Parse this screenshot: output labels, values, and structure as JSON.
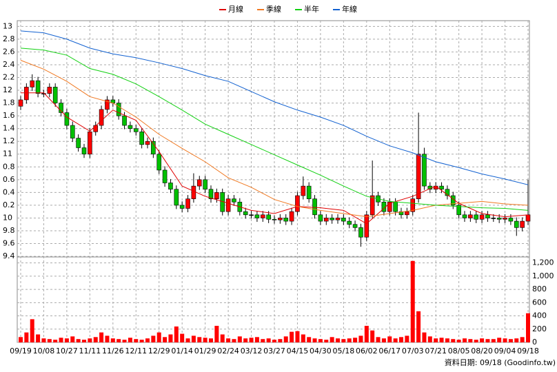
{
  "footer": "資料日期: 09/18 (Goodinfo.tw)",
  "chart_data": [
    {
      "type": "candlestick",
      "up_color": "#ff0000",
      "down_color": "#00c000",
      "wick_color": "#000000",
      "grid": true,
      "ylim": [
        9.39,
        13.09
      ],
      "yticks": [
        {
          "value": 13,
          "label": "13"
        },
        {
          "value": 12.8,
          "label": "2.8"
        },
        {
          "value": 12.6,
          "label": "2.6"
        },
        {
          "value": 12.4,
          "label": "2.4"
        },
        {
          "value": 12.2,
          "label": "2.2"
        },
        {
          "value": 12,
          "label": "12"
        },
        {
          "value": 11.8,
          "label": "1.8"
        },
        {
          "value": 11.6,
          "label": "1.6"
        },
        {
          "value": 11.4,
          "label": "1.4"
        },
        {
          "value": 11.2,
          "label": "1.2"
        },
        {
          "value": 11,
          "label": "11"
        },
        {
          "value": 10.8,
          "label": "0.8"
        },
        {
          "value": 10.6,
          "label": "0.6"
        },
        {
          "value": 10.4,
          "label": "0.4"
        },
        {
          "value": 10.2,
          "label": "0.2"
        },
        10,
        9.8,
        9.6,
        9.4
      ],
      "categories": [
        "09/19",
        null,
        null,
        null,
        "10/08",
        null,
        null,
        null,
        "10/27",
        null,
        null,
        null,
        "11/11",
        null,
        null,
        null,
        "11/26",
        null,
        null,
        null,
        "12/11",
        null,
        null,
        null,
        "12/29",
        null,
        null,
        null,
        "01/14",
        null,
        null,
        null,
        "01/29",
        null,
        null,
        null,
        "02/24",
        null,
        null,
        null,
        "03/12",
        null,
        null,
        null,
        "03/27",
        null,
        null,
        null,
        "04/15",
        null,
        null,
        null,
        "04/30",
        null,
        null,
        null,
        "05/18",
        null,
        null,
        null,
        "06/02",
        null,
        null,
        null,
        "06/17",
        null,
        null,
        null,
        "07/03",
        null,
        null,
        null,
        "07/21",
        null,
        null,
        null,
        "08/05",
        null,
        null,
        null,
        "08/20",
        null,
        null,
        null,
        "09/04",
        null,
        null,
        null,
        "09/18"
      ],
      "open": [
        11.75,
        11.85,
        12.05,
        12.15,
        11.95,
        11.95,
        12.05,
        11.8,
        11.65,
        11.45,
        11.25,
        11.1,
        11.0,
        11.35,
        11.45,
        11.7,
        11.85,
        11.8,
        11.6,
        11.45,
        11.4,
        11.35,
        11.15,
        11.2,
        11.0,
        10.75,
        10.55,
        10.45,
        10.2,
        10.15,
        10.3,
        10.5,
        10.6,
        10.45,
        10.3,
        10.4,
        10.1,
        10.3,
        10.25,
        10.1,
        10.05,
        10.05,
        10.0,
        10.05,
        9.98,
        9.97,
        10.0,
        9.95,
        10.1,
        10.35,
        10.5,
        10.3,
        10.05,
        9.95,
        10.0,
        9.97,
        10.0,
        9.95,
        9.9,
        9.85,
        9.7,
        10.05,
        10.35,
        10.25,
        10.1,
        10.25,
        10.1,
        10.05,
        10.1,
        10.3,
        11.0,
        10.5,
        10.45,
        10.5,
        10.45,
        10.35,
        10.2,
        10.05,
        10.0,
        10.05,
        9.98,
        10.05,
        10.0,
        10.0,
        9.98,
        10.0,
        9.95,
        9.85,
        9.95
      ],
      "high": [
        11.91,
        12.11,
        12.25,
        12.21,
        12.01,
        12.11,
        12.11,
        11.86,
        11.71,
        11.51,
        11.31,
        11.16,
        11.41,
        11.51,
        11.76,
        11.91,
        11.91,
        11.86,
        11.66,
        11.51,
        11.46,
        11.41,
        11.26,
        11.26,
        11.06,
        10.81,
        10.61,
        10.51,
        10.26,
        10.36,
        10.7,
        10.66,
        10.66,
        10.51,
        10.46,
        10.46,
        10.36,
        10.36,
        10.31,
        10.16,
        10.11,
        10.11,
        10.11,
        10.11,
        10.04,
        10.06,
        10.06,
        10.16,
        10.41,
        10.65,
        10.56,
        10.36,
        10.11,
        10.06,
        10.06,
        10.06,
        10.06,
        10.01,
        9.96,
        9.91,
        10.11,
        10.9,
        10.41,
        10.31,
        10.31,
        10.31,
        10.16,
        10.16,
        10.36,
        11.65,
        11.1,
        10.56,
        10.56,
        10.56,
        10.51,
        10.41,
        10.26,
        10.11,
        10.11,
        10.11,
        10.11,
        10.11,
        10.06,
        10.06,
        10.06,
        10.06,
        10.01,
        10.01,
        10.6
      ],
      "low": [
        11.69,
        11.79,
        11.99,
        11.89,
        11.89,
        11.89,
        11.74,
        11.59,
        11.39,
        11.19,
        11.04,
        10.94,
        10.94,
        11.29,
        11.39,
        11.64,
        11.74,
        11.54,
        11.39,
        11.34,
        11.29,
        11.09,
        11.09,
        10.94,
        10.69,
        10.49,
        10.39,
        10.14,
        10.09,
        10.09,
        10.24,
        10.44,
        10.39,
        10.24,
        10.24,
        10.04,
        10.04,
        10.19,
        10.04,
        9.99,
        9.99,
        9.94,
        9.94,
        9.92,
        9.91,
        9.91,
        9.89,
        9.89,
        10.04,
        10.29,
        10.24,
        9.99,
        9.89,
        9.89,
        9.91,
        9.91,
        9.89,
        9.84,
        9.79,
        9.55,
        9.64,
        9.99,
        10.19,
        10.04,
        10.04,
        10.04,
        9.99,
        9.99,
        10.04,
        10.24,
        10.44,
        10.39,
        10.39,
        10.39,
        10.29,
        10.14,
        9.99,
        9.94,
        9.94,
        9.92,
        9.92,
        9.94,
        9.94,
        9.92,
        9.92,
        9.89,
        9.72,
        9.79,
        9.89
      ],
      "close": [
        11.85,
        12.05,
        12.15,
        11.95,
        11.95,
        12.05,
        11.8,
        11.65,
        11.45,
        11.25,
        11.1,
        11.0,
        11.35,
        11.45,
        11.7,
        11.85,
        11.8,
        11.6,
        11.45,
        11.4,
        11.35,
        11.15,
        11.2,
        11.0,
        10.75,
        10.55,
        10.45,
        10.2,
        10.15,
        10.3,
        10.5,
        10.6,
        10.45,
        10.3,
        10.4,
        10.1,
        10.3,
        10.25,
        10.1,
        10.05,
        10.05,
        10.0,
        10.05,
        9.98,
        9.97,
        10.0,
        9.95,
        10.1,
        10.35,
        10.5,
        10.3,
        10.05,
        9.95,
        10.0,
        9.97,
        10.0,
        9.95,
        9.9,
        9.85,
        9.7,
        10.05,
        10.35,
        10.25,
        10.1,
        10.25,
        10.1,
        10.05,
        10.1,
        10.3,
        11.0,
        10.5,
        10.45,
        10.5,
        10.45,
        10.35,
        10.2,
        10.05,
        10.0,
        10.05,
        9.98,
        10.05,
        10.0,
        10.0,
        9.98,
        10.0,
        9.95,
        9.85,
        9.95,
        10.05
      ],
      "series": [
        {
          "name": "月線",
          "color": "#e00000",
          "x": [
            0,
            4,
            8,
            12,
            16,
            20,
            24,
            28,
            32,
            36,
            40,
            44,
            48,
            52,
            56,
            60,
            64,
            68,
            72,
            76,
            80,
            84,
            88
          ],
          "values": [
            11.96,
            11.96,
            11.58,
            11.36,
            11.69,
            11.53,
            11.04,
            10.5,
            10.34,
            10.23,
            10.12,
            10.07,
            10.18,
            10.16,
            10.12,
            9.91,
            10.23,
            10.34,
            10.5,
            10.23,
            10.07,
            10.02,
            10.05
          ]
        },
        {
          "name": "季線",
          "color": "#f07820",
          "x": [
            0,
            4,
            8,
            12,
            16,
            20,
            24,
            28,
            32,
            36,
            40,
            44,
            48,
            52,
            56,
            60,
            64,
            68,
            72,
            76,
            80,
            84,
            88
          ],
          "values": [
            12.47,
            12.33,
            12.14,
            11.9,
            11.8,
            11.58,
            11.31,
            11.09,
            10.88,
            10.63,
            10.48,
            10.29,
            10.18,
            10.12,
            10.07,
            10.02,
            10.07,
            10.12,
            10.2,
            10.23,
            10.26,
            10.22,
            10.2
          ]
        },
        {
          "name": "半年",
          "color": "#10d010",
          "x": [
            0,
            4,
            8,
            12,
            16,
            20,
            24,
            28,
            32,
            36,
            40,
            44,
            48,
            52,
            56,
            60,
            64,
            68,
            72,
            76,
            80,
            84,
            88
          ],
          "values": [
            12.66,
            12.63,
            12.55,
            12.34,
            12.25,
            12.1,
            11.9,
            11.69,
            11.47,
            11.31,
            11.15,
            10.99,
            10.83,
            10.67,
            10.5,
            10.34,
            10.26,
            10.23,
            10.2,
            10.18,
            10.16,
            10.15,
            10.12
          ]
        },
        {
          "name": "年線",
          "color": "#1060d0",
          "x": [
            0,
            4,
            8,
            12,
            16,
            20,
            24,
            28,
            32,
            36,
            40,
            44,
            48,
            52,
            56,
            60,
            64,
            68,
            72,
            76,
            80,
            84,
            88
          ],
          "values": [
            12.93,
            12.9,
            12.8,
            12.66,
            12.57,
            12.51,
            12.43,
            12.34,
            12.23,
            12.14,
            11.98,
            11.82,
            11.69,
            11.58,
            11.45,
            11.28,
            11.13,
            11.02,
            10.88,
            10.79,
            10.69,
            10.61,
            10.52
          ]
        }
      ]
    },
    {
      "type": "bar",
      "color": "#ff0000",
      "grid": true,
      "ylim": [
        0,
        1290
      ],
      "yticks": [
        0,
        200,
        400,
        600,
        800,
        {
          "value": 1000,
          "label": "1,000"
        },
        {
          "value": 1200,
          "label": "1,200"
        }
      ],
      "values": [
        80,
        150,
        350,
        120,
        60,
        50,
        40,
        70,
        60,
        90,
        50,
        40,
        60,
        80,
        150,
        100,
        60,
        50,
        40,
        70,
        50,
        40,
        60,
        100,
        150,
        80,
        120,
        240,
        130,
        60,
        100,
        80,
        70,
        60,
        250,
        120,
        60,
        50,
        90,
        60,
        70,
        80,
        50,
        60,
        40,
        50,
        90,
        160,
        170,
        120,
        80,
        60,
        50,
        40,
        80,
        60,
        50,
        60,
        70,
        100,
        250,
        180,
        80,
        60,
        90,
        60,
        80,
        100,
        1230,
        470,
        150,
        90,
        60,
        70,
        60,
        50,
        40,
        60,
        50,
        40,
        60,
        50,
        50,
        70,
        60,
        50,
        60,
        80,
        440
      ]
    }
  ]
}
